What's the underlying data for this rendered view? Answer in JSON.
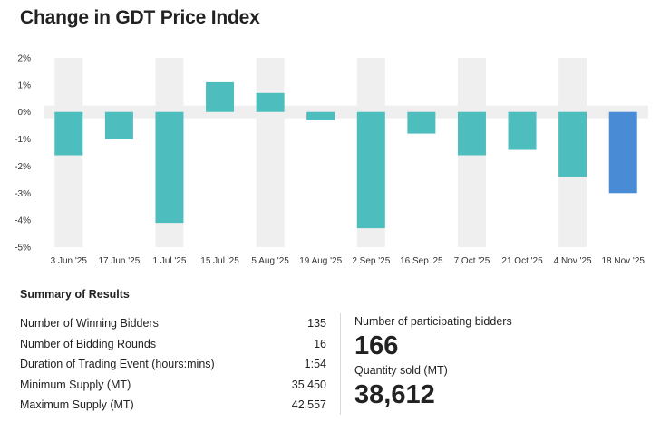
{
  "title": "Change in GDT Price Index",
  "chart_data": {
    "type": "bar",
    "title": "Change in GDT Price Index",
    "categories": [
      "3 Jun '25",
      "17 Jun '25",
      "1 Jul '25",
      "15 Jul '25",
      "5 Aug '25",
      "19 Aug '25",
      "2 Sep '25",
      "16 Sep '25",
      "7 Oct '25",
      "21 Oct '25",
      "4 Nov '25",
      "18 Nov '25"
    ],
    "values": [
      -1.6,
      -1.0,
      -4.1,
      1.1,
      0.7,
      -0.3,
      -4.3,
      -0.8,
      -1.6,
      -1.4,
      -2.4,
      -3.0
    ],
    "yticks": [
      2,
      1,
      0,
      -1,
      -2,
      -3,
      -4,
      -5
    ],
    "ytick_labels": [
      "2%",
      "1%",
      "0%",
      "-1%",
      "-2%",
      "-3%",
      "-4%",
      "-5%"
    ],
    "ylim": [
      -5,
      2
    ],
    "colors": {
      "default": "#4dbdbd",
      "latest": "#4a8bd6",
      "band": "#efefef"
    },
    "highlight_index": 11
  },
  "summary": {
    "title": "Summary of Results",
    "rows": [
      {
        "label": "Number of Winning Bidders",
        "value": "135"
      },
      {
        "label": "Number of Bidding Rounds",
        "value": "16"
      },
      {
        "label": "Duration of Trading Event (hours:mins)",
        "value": "1:54"
      },
      {
        "label": "Minimum Supply (MT)",
        "value": "35,450"
      },
      {
        "label": "Maximum Supply (MT)",
        "value": "42,557"
      }
    ],
    "participating_label": "Number of participating bidders",
    "participating_value": "166",
    "quantity_label": "Quantity sold (MT)",
    "quantity_value": "38,612"
  }
}
